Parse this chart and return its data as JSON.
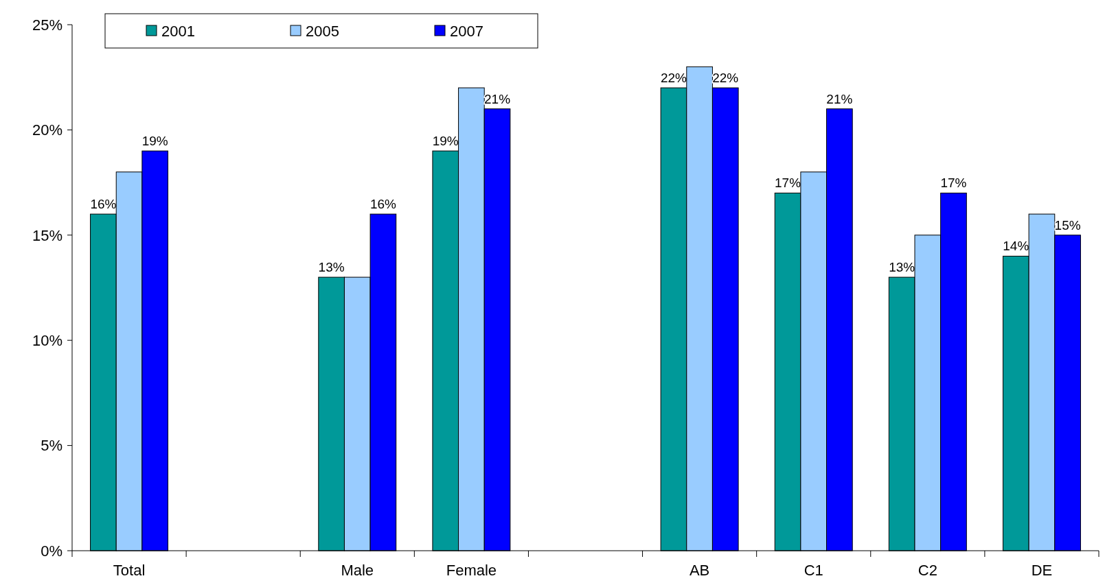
{
  "chart_data": {
    "type": "bar",
    "categories": [
      "Total",
      null,
      "Male",
      "Female",
      null,
      "AB",
      "C1",
      "C2",
      "DE"
    ],
    "series": [
      {
        "name": "2001",
        "color": "#009999",
        "values": [
          16,
          null,
          13,
          19,
          null,
          22,
          17,
          13,
          14
        ],
        "value_labels": [
          "16%",
          null,
          "13%",
          "19%",
          null,
          "22%",
          "17%",
          "13%",
          "14%"
        ]
      },
      {
        "name": "2005",
        "color": "#99ccff",
        "values": [
          18,
          null,
          13,
          22,
          null,
          23,
          18,
          15,
          16
        ]
      },
      {
        "name": "2007",
        "color": "#0000ff",
        "values": [
          19,
          null,
          16,
          21,
          null,
          22,
          21,
          17,
          15
        ],
        "value_labels": [
          "19%",
          null,
          "16%",
          "21%",
          null,
          "22%",
          "21%",
          "17%",
          "15%"
        ]
      }
    ],
    "ylim": [
      0,
      25
    ],
    "yticks": [
      {
        "value": 0,
        "label": "0%"
      },
      {
        "value": 5,
        "label": "5%"
      },
      {
        "value": 10,
        "label": "10%"
      },
      {
        "value": 15,
        "label": "15%"
      },
      {
        "value": 20,
        "label": "20%"
      },
      {
        "value": 25,
        "label": "25%"
      }
    ],
    "grid": false,
    "legend": "top left"
  }
}
